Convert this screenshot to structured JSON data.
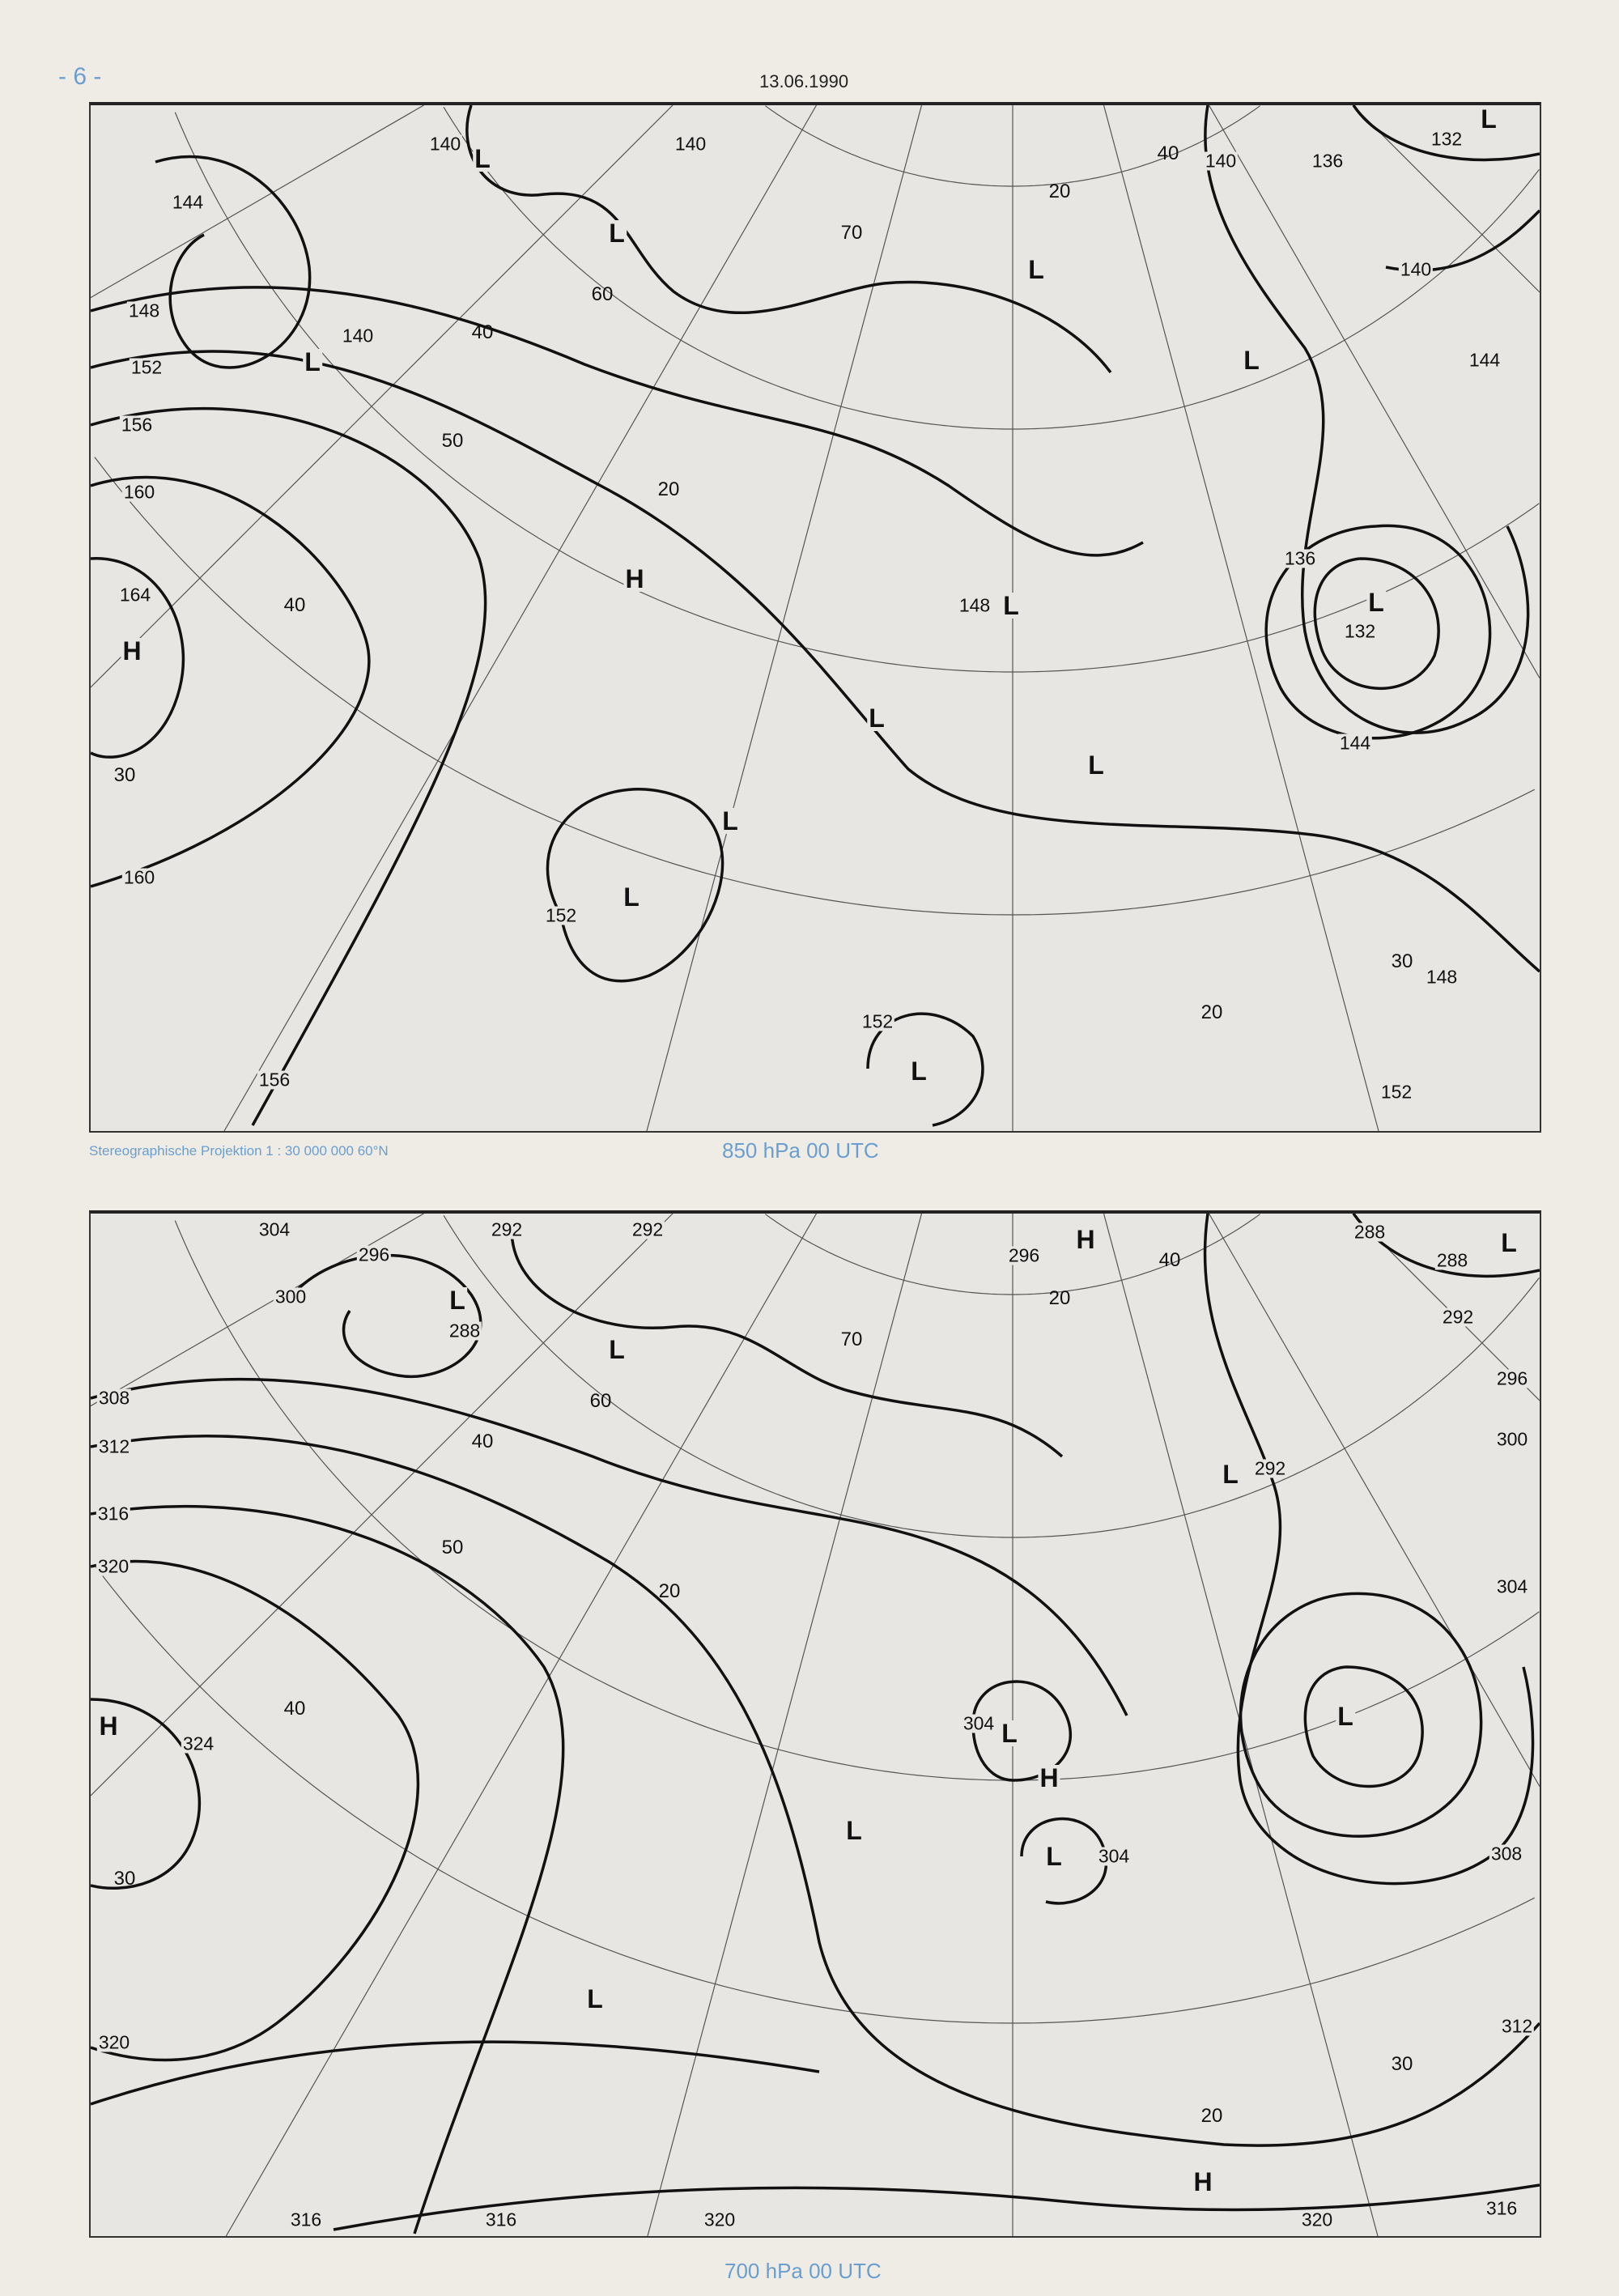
{
  "page": {
    "number": "- 6 -",
    "date": "13.06.1990"
  },
  "maps": [
    {
      "projection_note": "Stereographische Projektion   1 : 30 000 000  60°N",
      "caption": "850 hPa  00 UTC",
      "isohypse_labels": [
        "144",
        "140",
        "140",
        "140",
        "148",
        "152",
        "156",
        "160",
        "164",
        "H",
        "160",
        "156",
        "152",
        "L",
        "L",
        "152",
        "L",
        "148",
        "L",
        "L",
        "L",
        "H",
        "L",
        "L",
        "L",
        "L",
        "L",
        "140",
        "136",
        "132",
        "L",
        "140",
        "144",
        "136",
        "132",
        "L",
        "144",
        "148",
        "152"
      ],
      "latitude_labels": [
        "60",
        "50",
        "40",
        "20",
        "40",
        "30",
        "70",
        "20",
        "40",
        "20",
        "30"
      ]
    },
    {
      "caption": "700 hPa  00 UTC",
      "isohypse_labels": [
        "304",
        "292",
        "292",
        "296",
        "L",
        "288",
        "300",
        "308",
        "312",
        "316",
        "320",
        "H",
        "324",
        "320",
        "316",
        "316",
        "320",
        "320",
        "316",
        "312",
        "308",
        "304",
        "300",
        "296",
        "292",
        "288",
        "288",
        "H",
        "296",
        "L",
        "292",
        "L",
        "L",
        "304",
        "L",
        "H",
        "L",
        "304",
        "L",
        "L",
        "L",
        "H"
      ],
      "latitude_labels": [
        "60",
        "40",
        "50",
        "20",
        "40",
        "30",
        "70",
        "20",
        "40",
        "20",
        "30"
      ]
    }
  ],
  "colors": {
    "paper": "#efece5",
    "map_background": "#e7e6e3",
    "caption_blue": "#6b9ed0",
    "lines": "#111111"
  }
}
